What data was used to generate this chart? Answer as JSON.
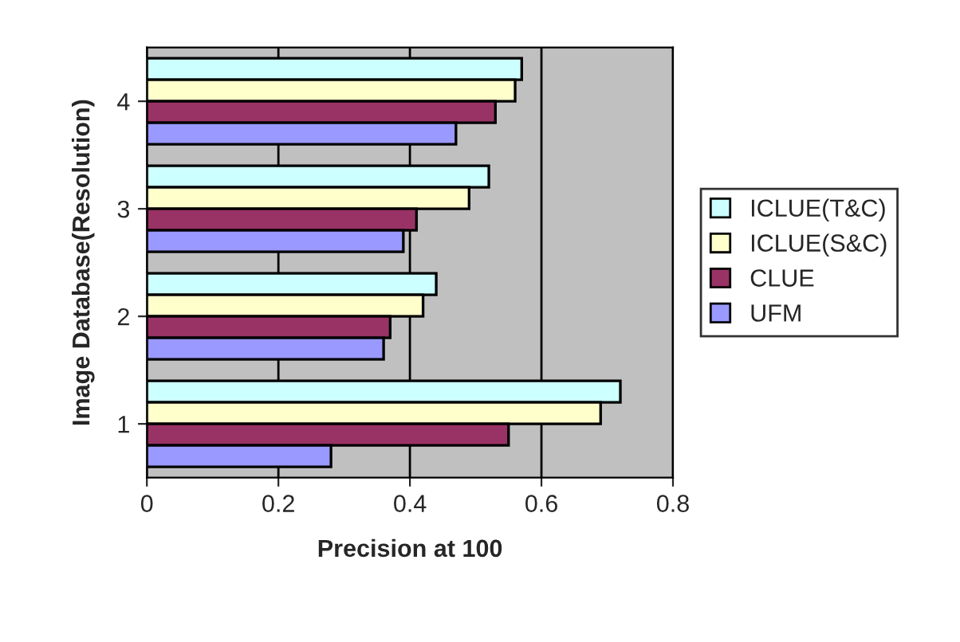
{
  "chart_data": {
    "type": "bar",
    "orientation": "horizontal",
    "xlabel": "Precision at 100",
    "ylabel": "Image Database(Resolution)",
    "categories": [
      "4",
      "3",
      "2",
      "1"
    ],
    "series": [
      {
        "name": "ICLUE(T&C)",
        "color": "#ccffff",
        "values": [
          0.57,
          0.52,
          0.44,
          0.72
        ]
      },
      {
        "name": "ICLUE(S&C)",
        "color": "#ffffcc",
        "values": [
          0.56,
          0.49,
          0.42,
          0.69
        ]
      },
      {
        "name": "CLUE",
        "color": "#993366",
        "values": [
          0.53,
          0.41,
          0.37,
          0.55
        ]
      },
      {
        "name": "UFM",
        "color": "#9999ff",
        "values": [
          0.47,
          0.39,
          0.36,
          0.28
        ]
      }
    ],
    "xlim": [
      0,
      0.8
    ],
    "xticks": [
      0,
      0.2,
      0.4,
      0.6,
      0.8
    ],
    "grid": "x",
    "legend": "right"
  }
}
